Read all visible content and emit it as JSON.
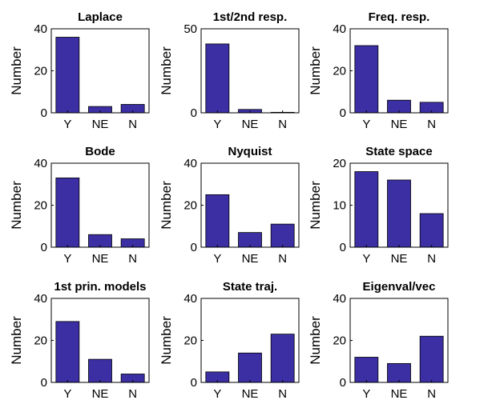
{
  "colors": {
    "bar": "#3b2fa3",
    "axis": "#000000",
    "background": "#ffffff"
  },
  "chart_data": [
    {
      "type": "bar",
      "title": "Laplace",
      "categories": [
        "Y",
        "NE",
        "N"
      ],
      "values": [
        36,
        3,
        4
      ],
      "ylabel": "Number",
      "ylim": [
        0,
        40
      ],
      "yticks": [
        0,
        20,
        40
      ],
      "grid": false
    },
    {
      "type": "bar",
      "title": "1st/2nd resp.",
      "categories": [
        "Y",
        "NE",
        "N"
      ],
      "values": [
        41,
        2,
        0.3
      ],
      "ylabel": "Number",
      "ylim": [
        0,
        50
      ],
      "yticks": [
        0,
        50
      ],
      "grid": false
    },
    {
      "type": "bar",
      "title": "Freq. resp.",
      "categories": [
        "Y",
        "NE",
        "N"
      ],
      "values": [
        32,
        6,
        5
      ],
      "ylabel": "Number",
      "ylim": [
        0,
        40
      ],
      "yticks": [
        0,
        20,
        40
      ],
      "grid": false
    },
    {
      "type": "bar",
      "title": "Bode",
      "categories": [
        "Y",
        "NE",
        "N"
      ],
      "values": [
        33,
        6,
        4
      ],
      "ylabel": "Number",
      "ylim": [
        0,
        40
      ],
      "yticks": [
        0,
        20,
        40
      ],
      "grid": false
    },
    {
      "type": "bar",
      "title": "Nyquist",
      "categories": [
        "Y",
        "NE",
        "N"
      ],
      "values": [
        25,
        7,
        11
      ],
      "ylabel": "Number",
      "ylim": [
        0,
        40
      ],
      "yticks": [
        0,
        20,
        40
      ],
      "grid": false
    },
    {
      "type": "bar",
      "title": "State space",
      "categories": [
        "Y",
        "NE",
        "N"
      ],
      "values": [
        18,
        16,
        8
      ],
      "ylabel": "Number",
      "ylim": [
        0,
        20
      ],
      "yticks": [
        0,
        10,
        20
      ],
      "grid": false
    },
    {
      "type": "bar",
      "title": "1st prin. models",
      "categories": [
        "Y",
        "NE",
        "N"
      ],
      "values": [
        29,
        11,
        4
      ],
      "ylabel": "Number",
      "ylim": [
        0,
        40
      ],
      "yticks": [
        0,
        20,
        40
      ],
      "grid": false
    },
    {
      "type": "bar",
      "title": "State  traj.",
      "categories": [
        "Y",
        "NE",
        "N"
      ],
      "values": [
        5,
        14,
        23
      ],
      "ylabel": "Number",
      "ylim": [
        0,
        40
      ],
      "yticks": [
        0,
        20,
        40
      ],
      "grid": false
    },
    {
      "type": "bar",
      "title": "Eigenval/vec",
      "categories": [
        "Y",
        "NE",
        "N"
      ],
      "values": [
        12,
        9,
        22
      ],
      "ylabel": "Number",
      "ylim": [
        0,
        40
      ],
      "yticks": [
        0,
        20,
        40
      ],
      "grid": false
    }
  ]
}
